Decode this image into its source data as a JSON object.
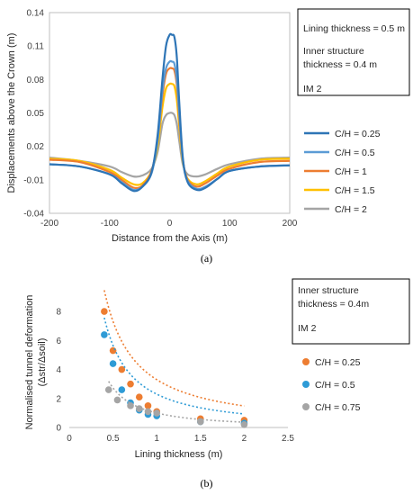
{
  "chart_data": [
    {
      "type": "line",
      "xlabel": "Distance from the Axis (m)",
      "ylabel": "Displacements above the Crown (m)",
      "xlim": [
        -200,
        200
      ],
      "ylim": [
        -0.04,
        0.14
      ],
      "x_ticks": [
        "-200",
        "-100",
        "0",
        "100",
        "200"
      ],
      "y_ticks": [
        "0.14",
        "0.11",
        "0.08",
        "0.05",
        "0.02",
        "-0.01",
        "-0.04"
      ],
      "annotation_lines": [
        "Lining thickness = 0.5 m",
        "Inner structure",
        "thickness = 0.4 m",
        "IM 2"
      ],
      "series": [
        {
          "name": "C/H = 0.25",
          "color": "#2E75B6",
          "x": [
            -200,
            -150,
            -100,
            -80,
            -60,
            -45,
            -30,
            -20,
            -12,
            -6,
            0,
            4,
            8,
            12,
            16,
            22,
            30,
            45,
            60,
            80,
            100,
            150,
            200
          ],
          "y": [
            0.004,
            0.002,
            -0.005,
            -0.013,
            -0.02,
            -0.016,
            -0.003,
            0.03,
            0.08,
            0.11,
            0.12,
            0.12,
            0.118,
            0.1,
            0.06,
            0.01,
            -0.012,
            -0.019,
            -0.017,
            -0.009,
            -0.002,
            0.002,
            0.003
          ]
        },
        {
          "name": "C/H = 0.5",
          "color": "#5B9BD5",
          "x": [
            -200,
            -150,
            -100,
            -80,
            -60,
            -45,
            -30,
            -20,
            -12,
            -6,
            0,
            4,
            8,
            12,
            16,
            22,
            30,
            45,
            60,
            80,
            100,
            150,
            200
          ],
          "y": [
            0.004,
            0.002,
            -0.005,
            -0.012,
            -0.019,
            -0.016,
            -0.004,
            0.025,
            0.07,
            0.09,
            0.096,
            0.096,
            0.094,
            0.08,
            0.05,
            0.008,
            -0.011,
            -0.018,
            -0.016,
            -0.009,
            -0.002,
            0.002,
            0.003
          ]
        },
        {
          "name": "C/H = 1",
          "color": "#ED7D31",
          "x": [
            -200,
            -150,
            -100,
            -80,
            -60,
            -45,
            -30,
            -20,
            -12,
            -6,
            0,
            4,
            8,
            12,
            16,
            22,
            30,
            45,
            60,
            80,
            100,
            150,
            200
          ],
          "y": [
            0.008,
            0.006,
            -0.003,
            -0.01,
            -0.017,
            -0.015,
            -0.002,
            0.025,
            0.065,
            0.085,
            0.09,
            0.09,
            0.088,
            0.075,
            0.045,
            0.008,
            -0.01,
            -0.016,
            -0.013,
            -0.006,
            0.0,
            0.006,
            0.007
          ]
        },
        {
          "name": "C/H = 1.5",
          "color": "#FFC000",
          "x": [
            -200,
            -150,
            -100,
            -80,
            -60,
            -45,
            -30,
            -20,
            -12,
            -6,
            0,
            4,
            8,
            12,
            16,
            22,
            30,
            45,
            60,
            80,
            100,
            150,
            200
          ],
          "y": [
            0.009,
            0.007,
            -0.001,
            -0.008,
            -0.014,
            -0.013,
            -0.002,
            0.02,
            0.055,
            0.072,
            0.076,
            0.076,
            0.074,
            0.062,
            0.038,
            0.006,
            -0.009,
            -0.014,
            -0.011,
            -0.004,
            0.002,
            0.008,
            0.009
          ]
        },
        {
          "name": "C/H = 2",
          "color": "#A5A5A5",
          "x": [
            -200,
            -150,
            -100,
            -80,
            -60,
            -45,
            -30,
            -20,
            -12,
            -6,
            0,
            4,
            8,
            12,
            16,
            22,
            30,
            45,
            60,
            80,
            100,
            150,
            200
          ],
          "y": [
            0.01,
            0.007,
            0.002,
            -0.003,
            -0.007,
            -0.006,
            0.0,
            0.015,
            0.04,
            0.048,
            0.05,
            0.05,
            0.048,
            0.04,
            0.025,
            0.004,
            -0.005,
            -0.007,
            -0.005,
            0.0,
            0.004,
            0.009,
            0.01
          ]
        }
      ]
    },
    {
      "type": "scatter",
      "xlabel": "Lining thickness (m)",
      "ylabel_line1": "Normalised tunnel deformation",
      "ylabel_line2": "(Δstr/Δsoil)",
      "xlim": [
        0,
        2.5
      ],
      "ylim": [
        0,
        9
      ],
      "x_ticks": [
        "0",
        "0.5",
        "1",
        "1.5",
        "2",
        "2.5"
      ],
      "y_ticks": [
        "0",
        "2",
        "4",
        "6",
        "8"
      ],
      "annotation_lines": [
        "Inner structure",
        "thickness = 0.4m",
        "IM 2"
      ],
      "series": [
        {
          "name": "C/H = 0.25",
          "color": "#ED7D31",
          "x": [
            0.4,
            0.5,
            0.6,
            0.7,
            0.8,
            0.9,
            1.0,
            1.5,
            2.0
          ],
          "y": [
            8.0,
            5.3,
            4.0,
            3.0,
            2.1,
            1.5,
            1.1,
            0.6,
            0.5
          ],
          "trend": {
            "a": 3.3,
            "b": -1.15
          }
        },
        {
          "name": "C/H = 0.5",
          "color": "#2E9BD6",
          "x": [
            0.4,
            0.5,
            0.6,
            0.7,
            0.8,
            0.9,
            1.0,
            1.5,
            2.0
          ],
          "y": [
            6.4,
            4.4,
            2.6,
            1.7,
            1.2,
            0.9,
            0.8,
            0.4,
            0.3
          ],
          "trend": {
            "a": 2.3,
            "b": -1.3
          }
        },
        {
          "name": "C/H = 0.75",
          "color": "#A5A5A5",
          "x": [
            0.45,
            0.55,
            0.7,
            0.8,
            0.9,
            1.0,
            1.5,
            2.0
          ],
          "y": [
            2.6,
            1.9,
            1.5,
            1.3,
            1.1,
            1.0,
            0.4,
            0.2
          ],
          "trend": {
            "a": 1.0,
            "b": -1.45
          }
        }
      ]
    }
  ],
  "captions": {
    "a": "(a)",
    "b": "(b)"
  }
}
